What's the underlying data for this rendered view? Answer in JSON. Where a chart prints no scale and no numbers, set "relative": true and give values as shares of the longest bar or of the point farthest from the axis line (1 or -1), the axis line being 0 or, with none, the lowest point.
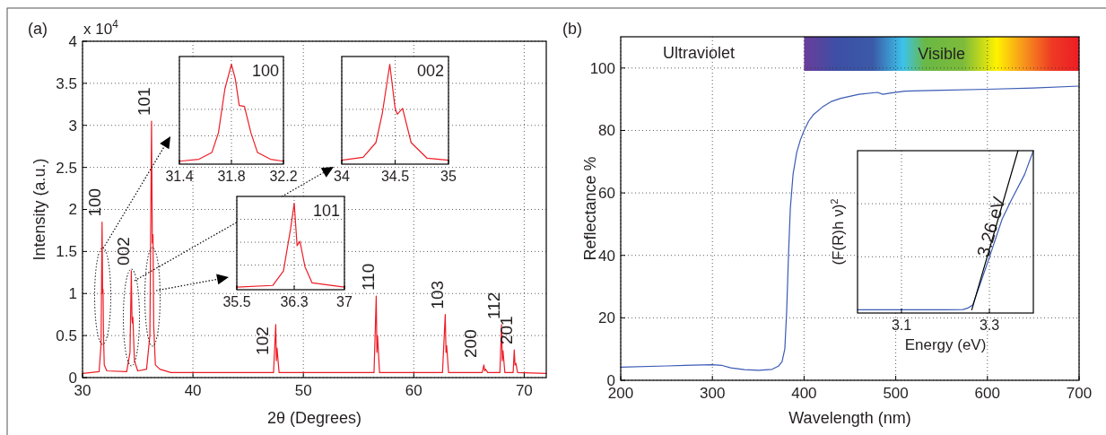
{
  "chart_data": [
    {
      "type": "line",
      "title": "(a)",
      "xlabel": "2θ (Degrees)",
      "ylabel": "Intensity (a.u.)",
      "xlim": [
        30,
        72
      ],
      "xticks": [
        30,
        40,
        50,
        60,
        70
      ],
      "ylim": [
        0,
        4
      ],
      "yticks": [
        0,
        0.5,
        1,
        1.5,
        2,
        2.5,
        3,
        3.5,
        4
      ],
      "grid": true,
      "annotations": [
        "x 10$^{4}$",
        {
          "text": "100",
          "x": 31.77,
          "y": 1.85
        },
        {
          "text": "002",
          "x": 34.42,
          "y": 1.27
        },
        {
          "text": "101",
          "x": 36.25,
          "y": 3.05
        },
        {
          "text": "102",
          "x": 47.5,
          "y": 0.63
        },
        {
          "text": "110",
          "x": 56.6,
          "y": 0.97
        },
        {
          "text": "103",
          "x": 62.85,
          "y": 0.75
        },
        {
          "text": "200",
          "x": 66.35,
          "y": 0.15
        },
        {
          "text": "112",
          "x": 67.95,
          "y": 0.63
        },
        {
          "text": "201",
          "x": 69.1,
          "y": 0.33
        }
      ],
      "series": [
        {
          "color": "#ee1c25",
          "x": [
            30,
            31.5,
            31.68,
            31.77,
            31.82,
            31.86,
            31.9,
            31.97,
            32.2,
            34.0,
            34.3,
            34.42,
            34.48,
            34.52,
            34.56,
            34.7,
            35.0,
            35.8,
            36.1,
            36.25,
            36.32,
            36.38,
            36.45,
            36.6,
            37.0,
            38.0,
            47.3,
            47.5,
            47.56,
            47.62,
            47.8,
            56.4,
            56.6,
            56.66,
            56.72,
            56.9,
            62.6,
            62.85,
            62.92,
            62.98,
            63.15,
            66.2,
            66.35,
            66.42,
            66.5,
            66.7,
            67.8,
            67.95,
            68.02,
            68.08,
            68.25,
            69.0,
            69.1,
            69.17,
            69.25,
            69.4,
            72
          ],
          "values": [
            0.05,
            0.07,
            0.4,
            1.85,
            1.0,
            1.05,
            0.5,
            0.15,
            0.08,
            0.07,
            0.3,
            1.27,
            0.7,
            0.65,
            0.72,
            0.2,
            0.08,
            0.1,
            0.5,
            3.05,
            1.6,
            1.7,
            0.6,
            0.15,
            0.1,
            0.06,
            0.06,
            0.63,
            0.2,
            0.35,
            0.06,
            0.06,
            0.97,
            0.3,
            0.5,
            0.06,
            0.06,
            0.75,
            0.3,
            0.38,
            0.06,
            0.06,
            0.15,
            0.08,
            0.1,
            0.06,
            0.06,
            0.63,
            0.2,
            0.32,
            0.06,
            0.06,
            0.33,
            0.15,
            0.17,
            0.06,
            0.05
          ]
        }
      ]
    },
    {
      "type": "line",
      "title": "100",
      "relative": true,
      "xlim": [
        31.4,
        32.2
      ],
      "xticks": [
        31.4,
        31.8,
        32.2
      ],
      "grid": true,
      "series": [
        {
          "color": "#ee1c25",
          "x": [
            31.4,
            31.55,
            31.65,
            31.7,
            31.75,
            31.8,
            31.83,
            31.86,
            31.9,
            31.95,
            32.0,
            32.1,
            32.2
          ],
          "values": [
            0.01,
            0.03,
            0.1,
            0.3,
            0.75,
            1.0,
            0.85,
            0.58,
            0.57,
            0.3,
            0.1,
            0.03,
            0.01
          ]
        }
      ]
    },
    {
      "type": "line",
      "title": "002",
      "relative": true,
      "xlim": [
        34,
        35
      ],
      "xticks": [
        34,
        34.5,
        35
      ],
      "grid": true,
      "series": [
        {
          "color": "#ee1c25",
          "x": [
            34,
            34.2,
            34.32,
            34.38,
            34.45,
            34.5,
            34.52,
            34.57,
            34.65,
            34.8,
            35
          ],
          "values": [
            0.02,
            0.05,
            0.2,
            0.5,
            1.0,
            0.55,
            0.49,
            0.55,
            0.2,
            0.04,
            0.02
          ]
        }
      ]
    },
    {
      "type": "line",
      "title": "101",
      "relative": true,
      "xlim": [
        35.5,
        37
      ],
      "xticks": [
        35.5,
        36.3,
        37
      ],
      "grid": true,
      "series": [
        {
          "color": "#ee1c25",
          "x": [
            35.5,
            36.0,
            36.15,
            36.25,
            36.3,
            36.34,
            36.38,
            36.45,
            36.55,
            37
          ],
          "values": [
            0.01,
            0.03,
            0.2,
            0.7,
            1.0,
            0.5,
            0.55,
            0.25,
            0.06,
            0.01
          ]
        }
      ]
    },
    {
      "type": "line",
      "title": "(b)",
      "xlabel": "Wavelength (nm)",
      "ylabel": "Reflectance %",
      "xlim": [
        200,
        700
      ],
      "xticks": [
        200,
        300,
        400,
        500,
        600,
        700
      ],
      "ylim": [
        0,
        110
      ],
      "yticks": [
        0,
        20,
        40,
        60,
        80,
        100
      ],
      "grid": true,
      "annotations": [
        "Ultraviolet"
      ],
      "bands": [
        {
          "axis": "x",
          "from": 400,
          "to": 700,
          "label": "Visible"
        }
      ],
      "series": [
        {
          "color": "#3b5bb5",
          "x": [
            200,
            250,
            300,
            310,
            320,
            335,
            350,
            365,
            372,
            376,
            379,
            381,
            383,
            385,
            388,
            392,
            396,
            400,
            405,
            410,
            420,
            430,
            440,
            460,
            480,
            486,
            495,
            510,
            550,
            600,
            650,
            700
          ],
          "values": [
            4.2,
            4.6,
            5.0,
            4.8,
            4.0,
            3.4,
            3.2,
            3.5,
            4.5,
            6,
            10,
            22,
            40,
            55,
            66,
            73,
            77,
            80,
            83,
            85,
            87.5,
            89.3,
            90.3,
            91.6,
            92.2,
            91.6,
            92.0,
            92.6,
            92.9,
            93.2,
            93.6,
            94.2
          ]
        }
      ]
    },
    {
      "type": "line",
      "xlabel": "Energy (eV)",
      "ylabel": "(F(R)h ν)$^{2}$",
      "relative": true,
      "xlim": [
        3.0,
        3.4
      ],
      "xticks": [
        3.1,
        3.3
      ],
      "grid": true,
      "annotations": [
        {
          "text": "3.26 eV",
          "x": 3.26,
          "y": 0
        }
      ],
      "series": [
        {
          "color": "#3b5bb5",
          "x": [
            3.0,
            3.2,
            3.24,
            3.25,
            3.262,
            3.28,
            3.3,
            3.329,
            3.35,
            3.38,
            3.4
          ],
          "values": [
            0,
            0,
            0.002,
            0.01,
            0.03,
            0.17,
            0.33,
            0.57,
            0.69,
            0.85,
            1.0
          ]
        },
        {
          "color": "#000000",
          "x": [
            3.26,
            3.365
          ],
          "values": [
            0,
            1.0
          ]
        }
      ]
    }
  ]
}
